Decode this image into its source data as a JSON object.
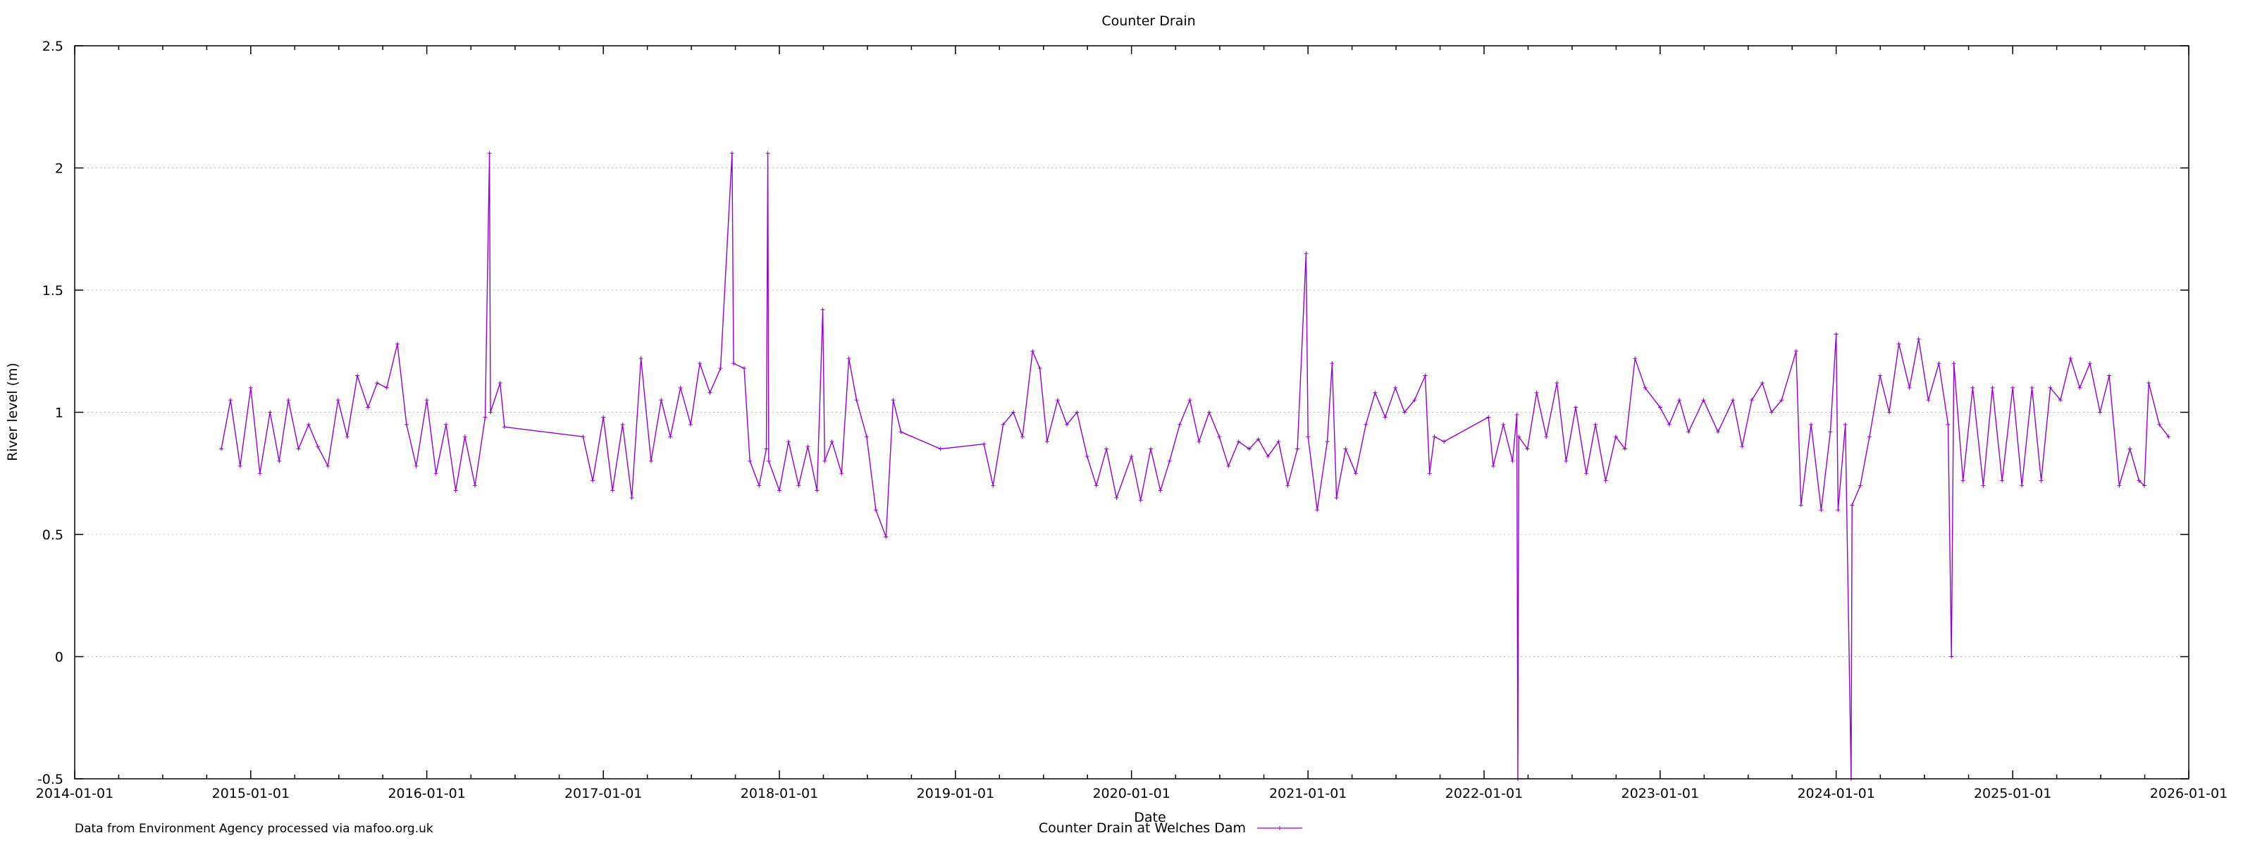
{
  "chart_data": {
    "type": "line",
    "title": "Counter Drain",
    "xlabel": "Date",
    "ylabel": "River level (m)",
    "ylim": [
      -0.5,
      2.5
    ],
    "xlim": [
      "2014-01-01",
      "2026-01-01"
    ],
    "yticks": [
      "-0.5",
      "0",
      "0.5",
      "1",
      "1.5",
      "2",
      "2.5"
    ],
    "xticks": [
      "2014-01-01",
      "2015-01-01",
      "2016-01-01",
      "2017-01-01",
      "2018-01-01",
      "2019-01-01",
      "2020-01-01",
      "2021-01-01",
      "2022-01-01",
      "2023-01-01",
      "2024-01-01",
      "2025-01-01",
      "2026-01-01"
    ],
    "grid": "horizontal dotted",
    "legend_position": "bottom-center",
    "footer_note": "Data from Environment Agency processed via mafoo.org.uk",
    "colors": {
      "series": "#9400d3"
    },
    "series": [
      {
        "name": "Counter Drain at Welches Dam",
        "points": [
          [
            "2014-11-01",
            0.85
          ],
          [
            "2014-11-20",
            1.05
          ],
          [
            "2014-12-10",
            0.78
          ],
          [
            "2015-01-01",
            1.1
          ],
          [
            "2015-01-20",
            0.75
          ],
          [
            "2015-02-10",
            1.0
          ],
          [
            "2015-03-01",
            0.8
          ],
          [
            "2015-03-20",
            1.05
          ],
          [
            "2015-04-10",
            0.85
          ],
          [
            "2015-05-01",
            0.95
          ],
          [
            "2015-05-20",
            0.86
          ],
          [
            "2015-06-10",
            0.78
          ],
          [
            "2015-07-01",
            1.05
          ],
          [
            "2015-07-20",
            0.9
          ],
          [
            "2015-08-10",
            1.15
          ],
          [
            "2015-09-01",
            1.02
          ],
          [
            "2015-09-20",
            1.12
          ],
          [
            "2015-10-10",
            1.1
          ],
          [
            "2015-11-01",
            1.28
          ],
          [
            "2015-11-20",
            0.95
          ],
          [
            "2015-12-10",
            0.78
          ],
          [
            "2016-01-01",
            1.05
          ],
          [
            "2016-01-20",
            0.75
          ],
          [
            "2016-02-10",
            0.95
          ],
          [
            "2016-03-01",
            0.68
          ],
          [
            "2016-03-20",
            0.9
          ],
          [
            "2016-04-10",
            0.7
          ],
          [
            "2016-05-01",
            0.98
          ],
          [
            "2016-05-10",
            2.06
          ],
          [
            "2016-05-12",
            1.0
          ],
          [
            "2016-06-01",
            1.12
          ],
          [
            "2016-06-10",
            0.94
          ],
          [
            "2016-11-20",
            0.9
          ],
          [
            "2016-12-10",
            0.72
          ],
          [
            "2017-01-01",
            0.98
          ],
          [
            "2017-01-20",
            0.68
          ],
          [
            "2017-02-10",
            0.95
          ],
          [
            "2017-03-01",
            0.65
          ],
          [
            "2017-03-20",
            1.22
          ],
          [
            "2017-04-10",
            0.8
          ],
          [
            "2017-05-01",
            1.05
          ],
          [
            "2017-05-20",
            0.9
          ],
          [
            "2017-06-10",
            1.1
          ],
          [
            "2017-07-01",
            0.95
          ],
          [
            "2017-07-20",
            1.2
          ],
          [
            "2017-08-10",
            1.08
          ],
          [
            "2017-09-01",
            1.18
          ],
          [
            "2017-09-25",
            2.06
          ],
          [
            "2017-09-28",
            1.2
          ],
          [
            "2017-10-20",
            1.18
          ],
          [
            "2017-11-01",
            0.8
          ],
          [
            "2017-11-20",
            0.7
          ],
          [
            "2017-12-05",
            0.85
          ],
          [
            "2017-12-08",
            2.06
          ],
          [
            "2017-12-10",
            0.8
          ],
          [
            "2018-01-01",
            0.68
          ],
          [
            "2018-01-20",
            0.88
          ],
          [
            "2018-02-10",
            0.7
          ],
          [
            "2018-03-01",
            0.86
          ],
          [
            "2018-03-20",
            0.68
          ],
          [
            "2018-04-01",
            1.42
          ],
          [
            "2018-04-05",
            0.8
          ],
          [
            "2018-04-20",
            0.88
          ],
          [
            "2018-05-10",
            0.75
          ],
          [
            "2018-05-25",
            1.22
          ],
          [
            "2018-06-10",
            1.05
          ],
          [
            "2018-07-01",
            0.9
          ],
          [
            "2018-07-20",
            0.6
          ],
          [
            "2018-08-10",
            0.49
          ],
          [
            "2018-08-25",
            1.05
          ],
          [
            "2018-09-10",
            0.92
          ],
          [
            "2018-12-01",
            0.85
          ],
          [
            "2019-03-01",
            0.87
          ],
          [
            "2019-03-20",
            0.7
          ],
          [
            "2019-04-10",
            0.95
          ],
          [
            "2019-05-01",
            1.0
          ],
          [
            "2019-05-20",
            0.9
          ],
          [
            "2019-06-10",
            1.25
          ],
          [
            "2019-06-25",
            1.18
          ],
          [
            "2019-07-10",
            0.88
          ],
          [
            "2019-08-01",
            1.05
          ],
          [
            "2019-08-20",
            0.95
          ],
          [
            "2019-09-10",
            1.0
          ],
          [
            "2019-10-01",
            0.82
          ],
          [
            "2019-10-20",
            0.7
          ],
          [
            "2019-11-10",
            0.85
          ],
          [
            "2019-12-01",
            0.65
          ],
          [
            "2020-01-01",
            0.82
          ],
          [
            "2020-01-20",
            0.64
          ],
          [
            "2020-02-10",
            0.85
          ],
          [
            "2020-03-01",
            0.68
          ],
          [
            "2020-03-20",
            0.8
          ],
          [
            "2020-04-10",
            0.95
          ],
          [
            "2020-05-01",
            1.05
          ],
          [
            "2020-05-20",
            0.88
          ],
          [
            "2020-06-10",
            1.0
          ],
          [
            "2020-07-01",
            0.9
          ],
          [
            "2020-07-20",
            0.78
          ],
          [
            "2020-08-10",
            0.88
          ],
          [
            "2020-09-01",
            0.85
          ],
          [
            "2020-09-20",
            0.89
          ],
          [
            "2020-10-10",
            0.82
          ],
          [
            "2020-11-01",
            0.88
          ],
          [
            "2020-11-20",
            0.7
          ],
          [
            "2020-12-10",
            0.85
          ],
          [
            "2020-12-28",
            1.65
          ],
          [
            "2021-01-01",
            0.9
          ],
          [
            "2021-01-20",
            0.6
          ],
          [
            "2021-02-10",
            0.88
          ],
          [
            "2021-02-20",
            1.2
          ],
          [
            "2021-03-01",
            0.65
          ],
          [
            "2021-03-20",
            0.85
          ],
          [
            "2021-04-10",
            0.75
          ],
          [
            "2021-05-01",
            0.95
          ],
          [
            "2021-05-20",
            1.08
          ],
          [
            "2021-06-10",
            0.98
          ],
          [
            "2021-07-01",
            1.1
          ],
          [
            "2021-07-20",
            1.0
          ],
          [
            "2021-08-10",
            1.05
          ],
          [
            "2021-09-01",
            1.15
          ],
          [
            "2021-09-10",
            0.75
          ],
          [
            "2021-09-20",
            0.9
          ],
          [
            "2021-10-10",
            0.88
          ],
          [
            "2022-01-10",
            0.98
          ],
          [
            "2022-01-20",
            0.78
          ],
          [
            "2022-02-10",
            0.95
          ],
          [
            "2022-03-01",
            0.8
          ],
          [
            "2022-03-10",
            0.99
          ],
          [
            "2022-03-12",
            -0.5
          ],
          [
            "2022-03-14",
            0.9
          ],
          [
            "2022-04-01",
            0.85
          ],
          [
            "2022-04-20",
            1.08
          ],
          [
            "2022-05-10",
            0.9
          ],
          [
            "2022-06-01",
            1.12
          ],
          [
            "2022-06-20",
            0.8
          ],
          [
            "2022-07-10",
            1.02
          ],
          [
            "2022-08-01",
            0.75
          ],
          [
            "2022-08-20",
            0.95
          ],
          [
            "2022-09-10",
            0.72
          ],
          [
            "2022-10-01",
            0.9
          ],
          [
            "2022-10-20",
            0.85
          ],
          [
            "2022-11-10",
            1.22
          ],
          [
            "2022-12-01",
            1.1
          ],
          [
            "2023-01-01",
            1.02
          ],
          [
            "2023-01-20",
            0.95
          ],
          [
            "2023-02-10",
            1.05
          ],
          [
            "2023-03-01",
            0.92
          ],
          [
            "2023-04-01",
            1.05
          ],
          [
            "2023-05-01",
            0.92
          ],
          [
            "2023-06-01",
            1.05
          ],
          [
            "2023-06-20",
            0.86
          ],
          [
            "2023-07-10",
            1.05
          ],
          [
            "2023-08-01",
            1.12
          ],
          [
            "2023-08-20",
            1.0
          ],
          [
            "2023-09-10",
            1.05
          ],
          [
            "2023-10-10",
            1.25
          ],
          [
            "2023-10-20",
            0.62
          ],
          [
            "2023-11-10",
            0.95
          ],
          [
            "2023-12-01",
            0.6
          ],
          [
            "2023-12-20",
            0.92
          ],
          [
            "2024-01-01",
            1.32
          ],
          [
            "2024-01-05",
            0.6
          ],
          [
            "2024-01-20",
            0.95
          ],
          [
            "2024-02-01",
            -0.5
          ],
          [
            "2024-02-03",
            0.62
          ],
          [
            "2024-02-20",
            0.7
          ],
          [
            "2024-03-10",
            0.9
          ],
          [
            "2024-04-01",
            1.15
          ],
          [
            "2024-04-20",
            1.0
          ],
          [
            "2024-05-10",
            1.28
          ],
          [
            "2024-06-01",
            1.1
          ],
          [
            "2024-06-20",
            1.3
          ],
          [
            "2024-07-10",
            1.05
          ],
          [
            "2024-08-01",
            1.2
          ],
          [
            "2024-08-20",
            0.95
          ],
          [
            "2024-08-27",
            0.0
          ],
          [
            "2024-09-01",
            1.2
          ],
          [
            "2024-09-20",
            0.72
          ],
          [
            "2024-10-10",
            1.1
          ],
          [
            "2024-11-01",
            0.7
          ],
          [
            "2024-11-20",
            1.1
          ],
          [
            "2024-12-10",
            0.72
          ],
          [
            "2025-01-01",
            1.1
          ],
          [
            "2025-01-20",
            0.7
          ],
          [
            "2025-02-10",
            1.1
          ],
          [
            "2025-03-01",
            0.72
          ],
          [
            "2025-03-20",
            1.1
          ],
          [
            "2025-04-10",
            1.05
          ],
          [
            "2025-05-01",
            1.22
          ],
          [
            "2025-05-20",
            1.1
          ],
          [
            "2025-06-10",
            1.2
          ],
          [
            "2025-07-01",
            1.0
          ],
          [
            "2025-07-20",
            1.15
          ],
          [
            "2025-08-10",
            0.7
          ],
          [
            "2025-09-01",
            0.85
          ],
          [
            "2025-09-20",
            0.72
          ],
          [
            "2025-10-01",
            0.7
          ],
          [
            "2025-10-10",
            1.12
          ],
          [
            "2025-11-01",
            0.95
          ],
          [
            "2025-11-20",
            0.9
          ]
        ]
      }
    ]
  }
}
